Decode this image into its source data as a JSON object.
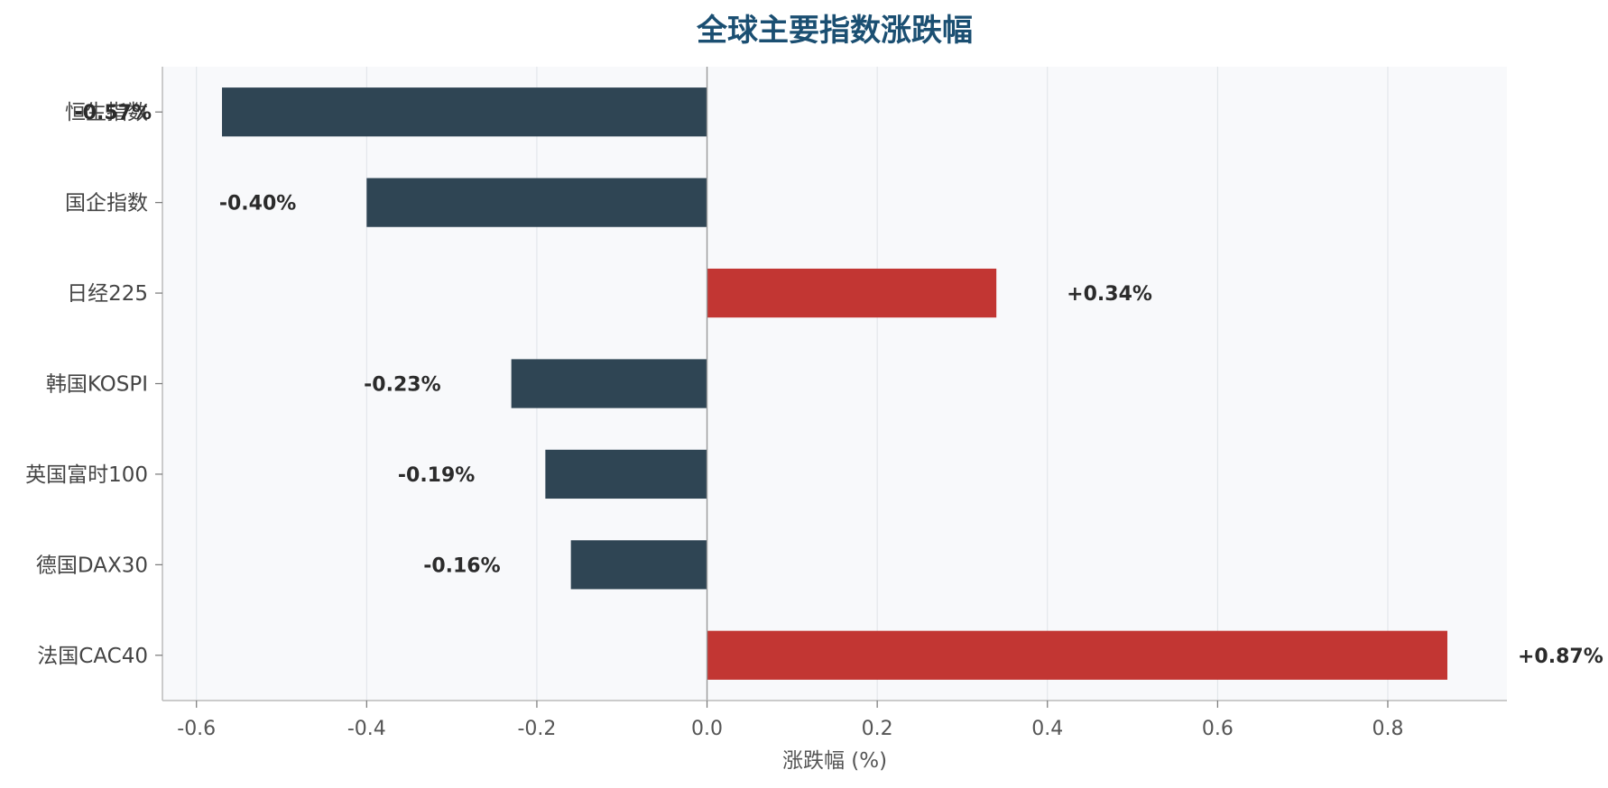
{
  "chart_data": {
    "type": "bar",
    "orientation": "horizontal",
    "title": "全球主要指数涨跌幅",
    "xlabel": "涨跌幅 (%)",
    "ylabel": "",
    "xlim": [
      -0.64,
      0.94
    ],
    "xticks": [
      -0.6,
      -0.4,
      -0.2,
      0.0,
      0.2,
      0.4,
      0.6,
      0.8
    ],
    "xtick_labels": [
      "-0.6",
      "-0.4",
      "-0.2",
      "0.0",
      "0.2",
      "0.4",
      "0.6",
      "0.8"
    ],
    "grid": "vertical",
    "categories": [
      "恒生指数",
      "国企指数",
      "日经225",
      "韩国KOSPI",
      "英国富时100",
      "德国DAX30",
      "法国CAC40"
    ],
    "values": [
      -0.57,
      -0.4,
      0.34,
      -0.23,
      -0.19,
      -0.16,
      0.87
    ],
    "data_labels": [
      "-0.57%",
      "-0.40%",
      "+0.34%",
      "-0.23%",
      "-0.19%",
      "-0.16%",
      "+0.87%"
    ],
    "colors": {
      "positive": "#c23633",
      "negative": "#2f4554",
      "plot_background": "#f8f9fb",
      "title": "#1b4f72"
    }
  }
}
